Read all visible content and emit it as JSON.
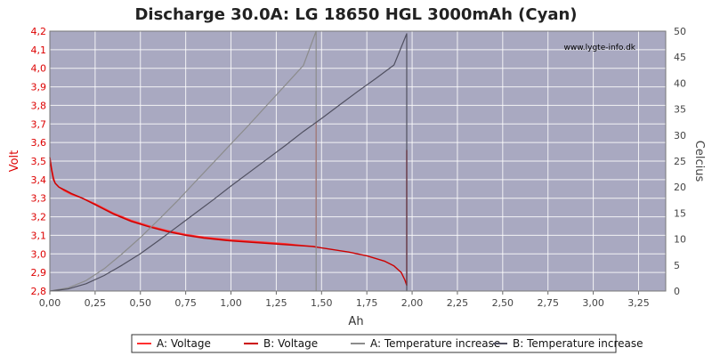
{
  "chart_data": {
    "type": "line",
    "title": "Discharge 30.0A: LG 18650 HGL 3000mAh (Cyan)",
    "watermark": "www.lygte-info.dk",
    "xlabel": "Ah",
    "ylabel": "Volt",
    "y2label": "Celcius",
    "xlim": [
      0,
      3.4
    ],
    "ylim": [
      2.8,
      4.2
    ],
    "y2lim": [
      0,
      50
    ],
    "x_ticks": [
      "0,00",
      "0,25",
      "0,50",
      "0,75",
      "1,00",
      "1,25",
      "1,50",
      "1,75",
      "2,00",
      "2,25",
      "2,50",
      "2,75",
      "3,00",
      "3,25"
    ],
    "y_ticks": [
      "2,8",
      "2,9",
      "3,0",
      "3,1",
      "3,2",
      "3,3",
      "3,4",
      "3,5",
      "3,6",
      "3,7",
      "3,8",
      "3,9",
      "4,0",
      "4,1",
      "4,2"
    ],
    "y2_ticks": [
      "0",
      "5",
      "10",
      "15",
      "20",
      "25",
      "30",
      "35",
      "40",
      "45",
      "50"
    ],
    "grid": true,
    "legend_position": "bottom",
    "colors": {
      "plot_bg": "#a9a9c1",
      "grid": "#ffffff",
      "voltage_a": "#ff3030",
      "voltage_b": "#cc0000",
      "temp_a": "#8c8c8c",
      "temp_b": "#505060"
    },
    "series": [
      {
        "name": "A: Voltage",
        "axis": "left",
        "x": [
          0.0,
          0.01,
          0.02,
          0.03,
          0.05,
          0.08,
          0.12,
          0.18,
          0.25,
          0.35,
          0.45,
          0.55,
          0.65,
          0.75,
          0.85,
          1.0,
          1.15,
          1.3,
          1.4,
          1.46,
          1.47,
          1.47
        ],
        "y": [
          3.52,
          3.46,
          3.41,
          3.38,
          3.36,
          3.34,
          3.32,
          3.3,
          3.27,
          3.22,
          3.18,
          3.15,
          3.125,
          3.105,
          3.09,
          3.075,
          3.065,
          3.055,
          3.045,
          3.04,
          3.035,
          3.71
        ]
      },
      {
        "name": "B: Voltage",
        "axis": "left",
        "x": [
          0.0,
          0.01,
          0.02,
          0.03,
          0.05,
          0.08,
          0.12,
          0.18,
          0.25,
          0.35,
          0.45,
          0.55,
          0.65,
          0.75,
          0.85,
          1.0,
          1.15,
          1.3,
          1.45,
          1.55,
          1.65,
          1.75,
          1.85,
          1.9,
          1.94,
          1.96,
          1.97,
          1.97
        ],
        "y": [
          3.52,
          3.45,
          3.4,
          3.38,
          3.36,
          3.345,
          3.325,
          3.3,
          3.265,
          3.215,
          3.175,
          3.145,
          3.12,
          3.1,
          3.085,
          3.07,
          3.06,
          3.05,
          3.04,
          3.025,
          3.01,
          2.99,
          2.96,
          2.935,
          2.9,
          2.86,
          2.83,
          3.56
        ]
      },
      {
        "name": "A: Temperature increase",
        "axis": "right",
        "x": [
          0.0,
          0.1,
          0.2,
          0.3,
          0.4,
          0.5,
          0.6,
          0.7,
          0.8,
          0.9,
          1.0,
          1.1,
          1.2,
          1.3,
          1.4,
          1.47,
          1.47
        ],
        "y": [
          0.0,
          0.6,
          2.0,
          4.3,
          7.2,
          10.3,
          13.7,
          17.2,
          20.9,
          24.6,
          28.3,
          32.0,
          35.8,
          39.6,
          43.4,
          50.0,
          0.0
        ]
      },
      {
        "name": "B: Temperature increase",
        "axis": "right",
        "x": [
          0.0,
          0.1,
          0.2,
          0.3,
          0.4,
          0.5,
          0.6,
          0.7,
          0.8,
          0.9,
          1.0,
          1.1,
          1.2,
          1.3,
          1.4,
          1.5,
          1.6,
          1.7,
          1.8,
          1.9,
          1.97,
          1.97
        ],
        "y": [
          0.0,
          0.4,
          1.4,
          3.0,
          5.0,
          7.2,
          9.7,
          12.3,
          14.9,
          17.5,
          20.2,
          22.8,
          25.4,
          28.0,
          30.7,
          33.2,
          35.8,
          38.4,
          40.9,
          43.5,
          49.5,
          0.0
        ]
      }
    ]
  }
}
